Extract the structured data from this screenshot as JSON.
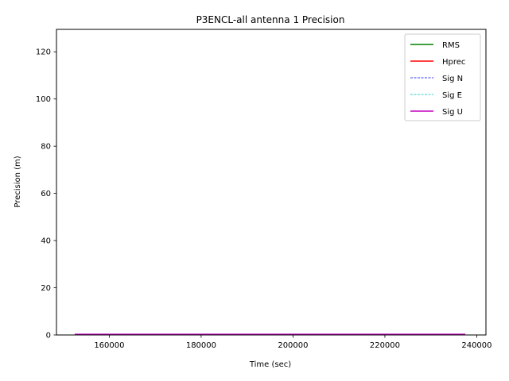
{
  "chart_data": {
    "type": "line",
    "title": "P3ENCL-all antenna 1 Precision",
    "xlabel": "Time (sec)",
    "ylabel": "Precision (m)",
    "xlim": [
      148500,
      242000
    ],
    "ylim": [
      0,
      129.5
    ],
    "xticks": [
      160000,
      180000,
      200000,
      220000,
      240000
    ],
    "yticks": [
      0,
      20,
      40,
      60,
      80,
      100,
      120
    ],
    "xtick_labels": [
      "160000",
      "180000",
      "200000",
      "220000",
      "240000"
    ],
    "ytick_labels": [
      "0",
      "20",
      "40",
      "60",
      "80",
      "100",
      "120"
    ],
    "grid": false,
    "legend_position": "upper right",
    "series": [
      {
        "name": "RMS",
        "color": "#008000",
        "style": "solid",
        "x": [
          152500,
          237500
        ],
        "y": [
          0.2,
          0.2
        ]
      },
      {
        "name": "Hprec",
        "color": "#ff0000",
        "style": "solid",
        "x": [
          152500,
          237500
        ],
        "y": [
          0.2,
          0.2
        ]
      },
      {
        "name": "Sig N",
        "color": "#0000ff",
        "style": "dashed",
        "x": [
          152500,
          237500
        ],
        "y": [
          0.1,
          0.1
        ]
      },
      {
        "name": "Sig E",
        "color": "#00bfbf",
        "style": "dashed",
        "x": [
          152500,
          237500
        ],
        "y": [
          0.1,
          0.1
        ]
      },
      {
        "name": "Sig U",
        "color": "#bf00bf",
        "style": "solid",
        "x": [
          152500,
          237500
        ],
        "y": [
          0.3,
          0.3
        ]
      }
    ]
  }
}
